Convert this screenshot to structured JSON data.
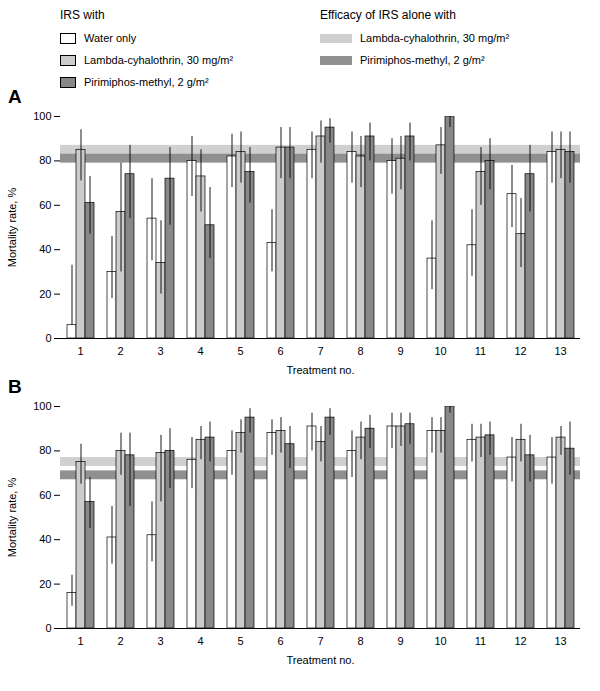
{
  "chart_data": [
    {
      "type": "bar",
      "title": "A",
      "xlabel": "Treatment no.",
      "ylabel": "Mortality rate, %",
      "categories": [
        "1",
        "2",
        "3",
        "4",
        "5",
        "6",
        "7",
        "8",
        "9",
        "10",
        "11",
        "12",
        "13"
      ],
      "ylim": [
        0,
        100
      ],
      "yticks": [
        0,
        20,
        40,
        60,
        80,
        100
      ],
      "legend_title": "IRS with",
      "series": [
        {
          "name": "Water only",
          "color": "#ffffff",
          "values": [
            6,
            30,
            54,
            80,
            82,
            43,
            85,
            84,
            80,
            36,
            42,
            65,
            84
          ],
          "err_low": [
            6,
            18,
            35,
            64,
            68,
            30,
            72,
            70,
            65,
            22,
            28,
            50,
            70
          ],
          "err_high": [
            33,
            46,
            72,
            91,
            92,
            58,
            93,
            93,
            90,
            53,
            58,
            78,
            93
          ]
        },
        {
          "name": "Lambda-cyhalothrin, 30 mg/m²",
          "color": "#cccccc",
          "values": [
            85,
            57,
            34,
            73,
            84,
            86,
            91,
            82,
            81,
            87,
            75,
            47,
            85
          ],
          "err_low": [
            71,
            30,
            20,
            57,
            70,
            72,
            79,
            68,
            67,
            74,
            60,
            32,
            72
          ],
          "err_high": [
            94,
            79,
            53,
            85,
            93,
            95,
            98,
            91,
            91,
            95,
            86,
            63,
            93
          ]
        },
        {
          "name": "Pirimiphos-methyl, 2 g/m²",
          "color": "#888888",
          "values": [
            61,
            74,
            72,
            51,
            75,
            86,
            95,
            91,
            91,
            100,
            80,
            74,
            84
          ],
          "err_low": [
            47,
            54,
            51,
            36,
            61,
            72,
            88,
            80,
            80,
            95,
            67,
            57,
            70
          ],
          "err_high": [
            73,
            87,
            86,
            68,
            86,
            95,
            99,
            97,
            97,
            100,
            90,
            87,
            93
          ]
        }
      ],
      "bands_legend_title": "Efficacy of IRS alone with",
      "bands": [
        {
          "name": "Lambda-cyhalothrin, 30 mg/m²",
          "color": "#d0d0d0",
          "low": 82,
          "high": 87
        },
        {
          "name": "Pirimiphos-methyl, 2 g/m²",
          "color": "#909090",
          "low": 79,
          "high": 83
        }
      ]
    },
    {
      "type": "bar",
      "title": "B",
      "xlabel": "Treatment no.",
      "ylabel": "Mortality rate, %",
      "categories": [
        "1",
        "2",
        "3",
        "4",
        "5",
        "6",
        "7",
        "8",
        "9",
        "10",
        "11",
        "12",
        "13"
      ],
      "ylim": [
        0,
        100
      ],
      "yticks": [
        0,
        20,
        40,
        60,
        80,
        100
      ],
      "series": [
        {
          "name": "Water only",
          "color": "#ffffff",
          "values": [
            16,
            41,
            42,
            76,
            80,
            88,
            91,
            80,
            91,
            89,
            85,
            77,
            77
          ],
          "err_low": [
            10,
            29,
            30,
            63,
            69,
            78,
            80,
            68,
            81,
            79,
            75,
            66,
            65
          ],
          "err_high": [
            24,
            55,
            57,
            86,
            89,
            94,
            97,
            89,
            97,
            95,
            92,
            86,
            86
          ]
        },
        {
          "name": "Lambda-cyhalothrin, 30 mg/m²",
          "color": "#cccccc",
          "values": [
            75,
            80,
            79,
            85,
            88,
            89,
            84,
            86,
            91,
            89,
            86,
            85,
            86
          ],
          "err_low": [
            65,
            69,
            57,
            76,
            79,
            79,
            75,
            76,
            82,
            79,
            77,
            75,
            78
          ],
          "err_high": [
            83,
            88,
            87,
            91,
            94,
            95,
            91,
            93,
            97,
            95,
            92,
            92,
            91
          ]
        },
        {
          "name": "Pirimiphos-methyl, 2 g/m²",
          "color": "#888888",
          "values": [
            57,
            78,
            80,
            86,
            95,
            83,
            95,
            90,
            92,
            100,
            87,
            78,
            81
          ],
          "err_low": [
            45,
            55,
            63,
            75,
            88,
            72,
            87,
            81,
            83,
            97,
            78,
            66,
            69
          ],
          "err_high": [
            68,
            88,
            90,
            93,
            99,
            91,
            99,
            96,
            97,
            100,
            93,
            87,
            93
          ]
        }
      ],
      "bands": [
        {
          "name": "Lambda-cyhalothrin, 30 mg/m²",
          "color": "#d0d0d0",
          "low": 73,
          "high": 77
        },
        {
          "name": "Pirimiphos-methyl, 2 g/m²",
          "color": "#909090",
          "low": 67,
          "high": 71
        }
      ]
    }
  ]
}
